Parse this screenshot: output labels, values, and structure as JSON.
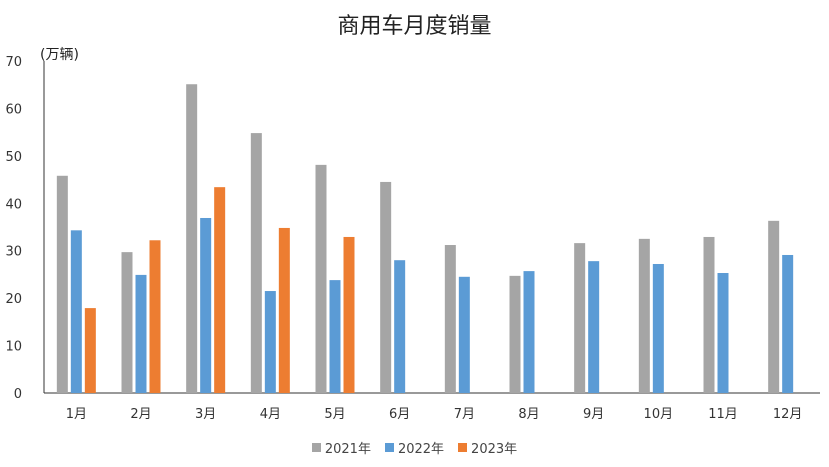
{
  "chart_data": {
    "type": "bar",
    "title": "商用车月度销量",
    "unit_label": "(万辆)",
    "categories": [
      "1月",
      "2月",
      "3月",
      "4月",
      "5月",
      "6月",
      "7月",
      "8月",
      "9月",
      "10月",
      "11月",
      "12月"
    ],
    "series": [
      {
        "name": "2021年",
        "color": "#a5a5a5",
        "values": [
          45.8,
          29.7,
          65.1,
          54.8,
          48.1,
          44.5,
          31.2,
          24.7,
          31.6,
          32.5,
          32.9,
          36.3
        ]
      },
      {
        "name": "2022年",
        "color": "#5b9bd5",
        "values": [
          34.3,
          24.9,
          36.9,
          21.5,
          23.8,
          28.0,
          24.5,
          25.7,
          27.8,
          27.2,
          25.3,
          29.1
        ]
      },
      {
        "name": "2023年",
        "color": "#ed7d31",
        "values": [
          17.9,
          32.2,
          43.4,
          34.8,
          32.9,
          null,
          null,
          null,
          null,
          null,
          null,
          null
        ]
      }
    ],
    "ylim": [
      0,
      70
    ],
    "yticks": [
      0,
      10,
      20,
      30,
      40,
      50,
      60,
      70
    ],
    "grid": false,
    "legend_position": "bottom"
  }
}
